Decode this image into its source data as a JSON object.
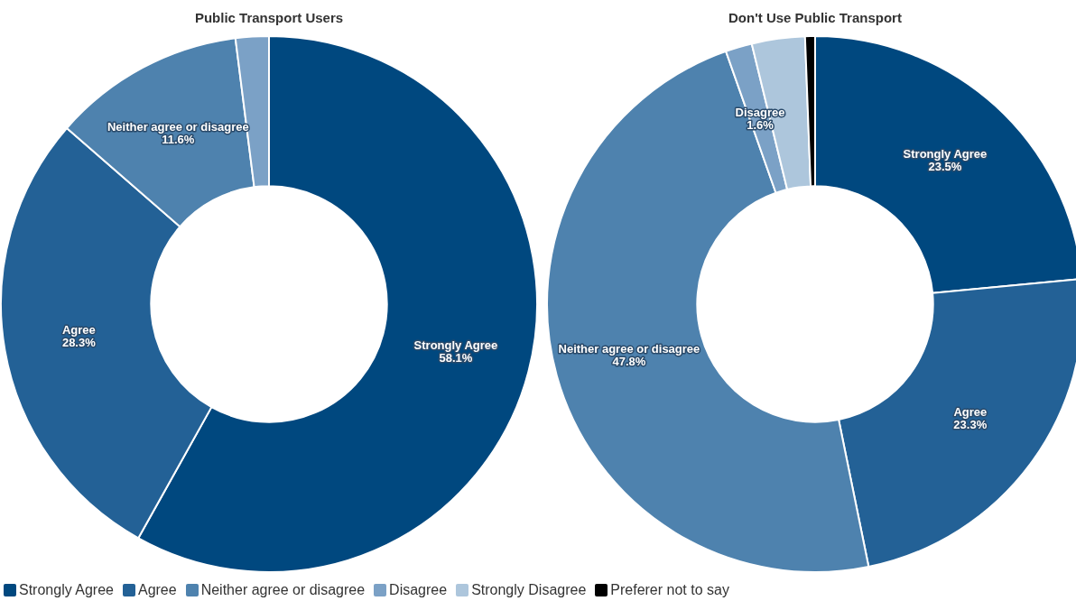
{
  "chart_data": [
    {
      "type": "donut",
      "title": "Public Transport Users",
      "categories": [
        "Strongly Agree",
        "Agree",
        "Neither agree or disagree",
        "Disagree"
      ],
      "values": [
        58.1,
        28.3,
        11.6,
        2.0
      ],
      "value_labels": [
        "58.1%",
        "28.3%",
        "11.6%",
        null
      ],
      "colors": [
        "#00487f",
        "#236196",
        "#4e82ae",
        "#7ba1c6"
      ],
      "legend": "bottom"
    },
    {
      "type": "donut",
      "title": "Don't Use Public Transport",
      "categories": [
        "Strongly Agree",
        "Agree",
        "Neither agree or disagree",
        "Disagree",
        "Strongly Disagree",
        "Preferer not to say"
      ],
      "values": [
        23.5,
        23.3,
        47.8,
        1.6,
        3.2,
        0.6
      ],
      "value_labels": [
        "23.5%",
        "23.3%",
        "47.8%",
        "1.6%",
        null,
        null
      ],
      "colors": [
        "#00487f",
        "#236196",
        "#4e82ae",
        "#7ba1c6",
        "#adc6dc",
        "#000000"
      ],
      "legend": "bottom"
    }
  ]
}
